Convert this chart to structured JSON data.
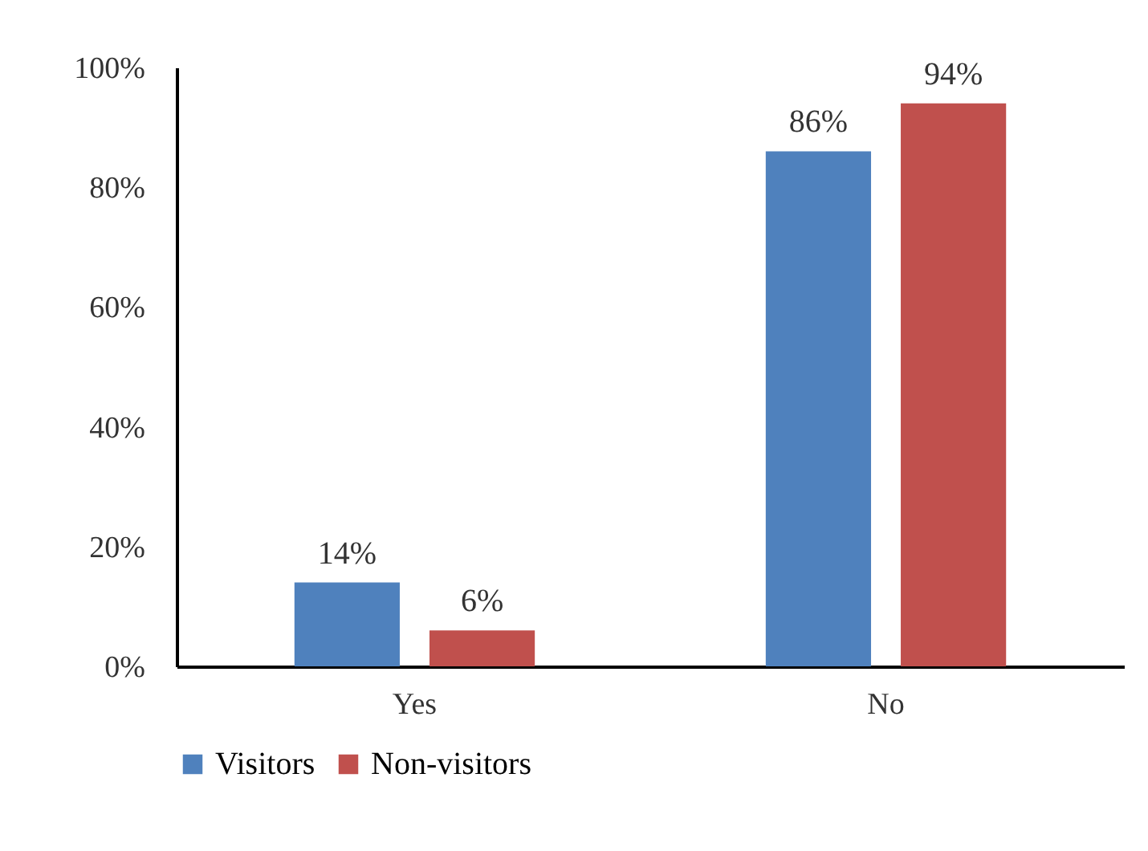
{
  "chart_data": {
    "type": "bar",
    "categories": [
      "Yes",
      "No"
    ],
    "series": [
      {
        "name": "Visitors",
        "color": "#4f81bd",
        "values": [
          14,
          86
        ],
        "value_labels": [
          "14%",
          "86%"
        ]
      },
      {
        "name": "Non-visitors",
        "color": "#c0504d",
        "values": [
          6,
          94
        ],
        "value_labels": [
          "6%",
          "94%"
        ]
      }
    ],
    "ylim": [
      0,
      100
    ],
    "yticks": [
      {
        "value": 0,
        "label": "0%"
      },
      {
        "value": 20,
        "label": "20%"
      },
      {
        "value": 40,
        "label": "40%"
      },
      {
        "value": 60,
        "label": "60%"
      },
      {
        "value": 80,
        "label": "80%"
      },
      {
        "value": 100,
        "label": "100%"
      }
    ],
    "grid": false,
    "legend": "bottom"
  }
}
